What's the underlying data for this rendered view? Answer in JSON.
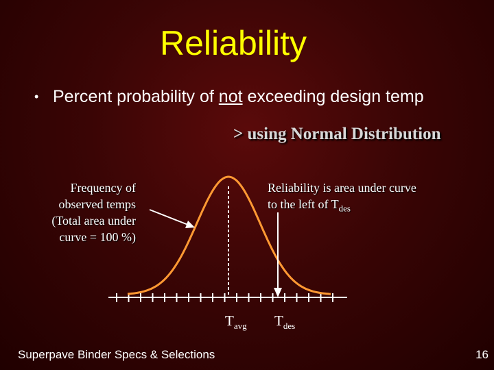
{
  "slide": {
    "title": "Reliability",
    "bullet_prefix": "Percent probability of ",
    "bullet_underlined": "not",
    "bullet_suffix": " exceeding design temp",
    "subpoint": ">  using Normal Distribution"
  },
  "diagram": {
    "freq_label_lines": [
      "Frequency of",
      "observed temps",
      "(Total area under",
      "curve = 100 %)"
    ],
    "reliability_label_line1": "Reliability is area under curve",
    "reliability_label_line2_prefix": "to the left of T",
    "reliability_label_line2_sub": "des",
    "tavg_main": "T",
    "tavg_sub": "avg",
    "tdes_main": "T",
    "tdes_sub": "des",
    "curve_color": "#ff9933",
    "tavg_line_color": "#ffffff",
    "tdes_arrow_color": "#ffffff"
  },
  "footer": {
    "text": "Superpave Binder Specs & Selections",
    "page_number": "16"
  }
}
